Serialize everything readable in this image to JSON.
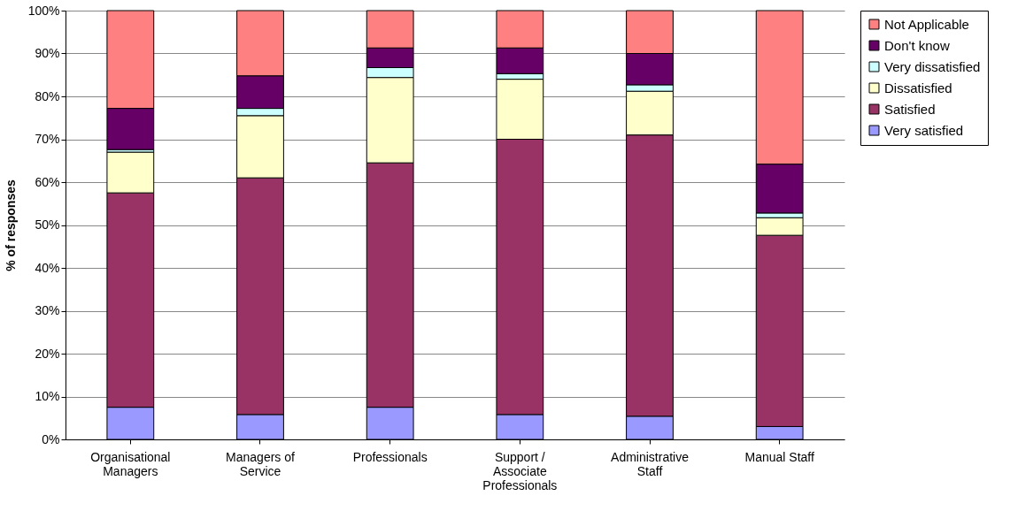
{
  "chart_data": {
    "type": "bar",
    "stacked": true,
    "ylabel": "% of responses",
    "categories": [
      "Organisational Managers",
      "Managers of Service",
      "Professionals",
      "Support / Associate Professionals",
      "Administrative Staff",
      "Manual Staff"
    ],
    "series": [
      {
        "name": "Very satisfied",
        "color": "#9999ff",
        "values": [
          7.5,
          5.8,
          7.5,
          5.8,
          5.4,
          3
        ]
      },
      {
        "name": "Satisfied",
        "color": "#993366",
        "values": [
          50,
          55.2,
          57,
          64.2,
          65.6,
          44.6
        ]
      },
      {
        "name": "Dissatisfied",
        "color": "#ffffcc",
        "values": [
          9.5,
          14.5,
          19.9,
          14,
          10.2,
          4.1
        ]
      },
      {
        "name": "Very dissatisfied",
        "color": "#ccffff",
        "values": [
          0.6,
          1.7,
          2.3,
          1.3,
          1.5,
          1.1
        ]
      },
      {
        "name": "Don't know",
        "color": "#660066",
        "values": [
          9.6,
          7.6,
          4.6,
          6,
          7.3,
          11.4
        ]
      },
      {
        "name": "Not Applicable",
        "color": "#ff8080",
        "values": [
          22.8,
          15.2,
          8.7,
          8.7,
          10,
          35.8
        ]
      }
    ],
    "ylim": [
      0,
      100
    ],
    "yticks": [
      {
        "value": 0,
        "label": "0%"
      },
      {
        "value": 10,
        "label": "10%"
      },
      {
        "value": 20,
        "label": "20%"
      },
      {
        "value": 30,
        "label": "30%"
      },
      {
        "value": 40,
        "label": "40%"
      },
      {
        "value": 50,
        "label": "50%"
      },
      {
        "value": 60,
        "label": "60%"
      },
      {
        "value": 70,
        "label": "70%"
      },
      {
        "value": 80,
        "label": "80%"
      },
      {
        "value": 90,
        "label": "90%"
      },
      {
        "value": 100,
        "label": "100%"
      }
    ],
    "grid": "y",
    "legend": "top right"
  }
}
